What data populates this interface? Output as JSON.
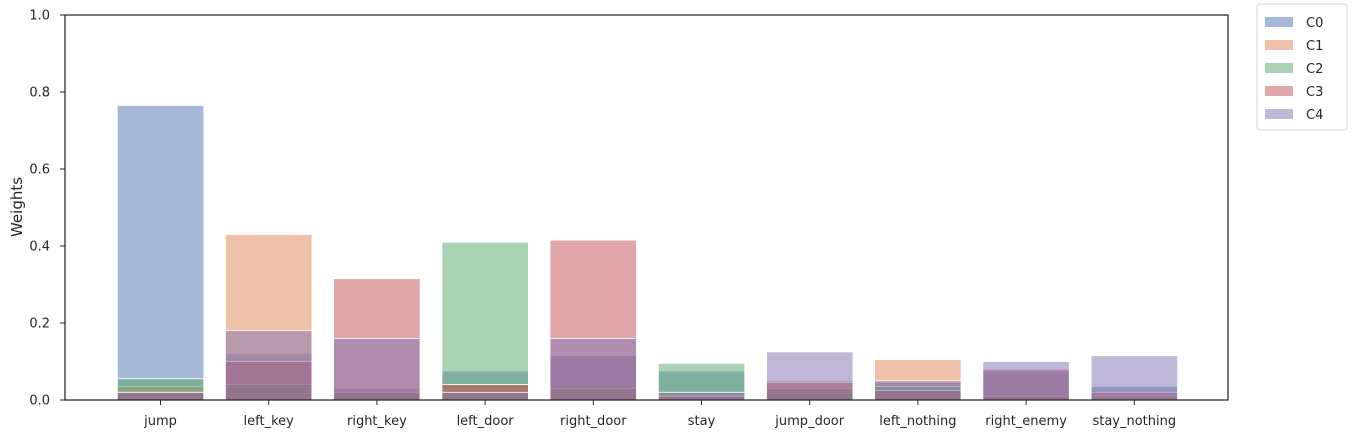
{
  "chart_data": {
    "type": "bar",
    "title": "",
    "xlabel": "",
    "ylabel": "Weights",
    "ylim": [
      0,
      1.0
    ],
    "yticks": [
      "0.0",
      "0.2",
      "0.4",
      "0.6",
      "0.8",
      "1.0"
    ],
    "grid": false,
    "legend_position": "outside top-right",
    "bar_opacity": 0.5,
    "categories": [
      "jump",
      "left_key",
      "right_key",
      "left_door",
      "right_door",
      "stay",
      "jump_door",
      "left_nothing",
      "right_enemy",
      "stay_nothing"
    ],
    "series": [
      {
        "name": "C0",
        "color": "#4c72b0",
        "values": [
          0.765,
          0.12,
          0.03,
          0.075,
          0.115,
          0.075,
          0.02,
          0.045,
          0.075,
          0.035
        ]
      },
      {
        "name": "C1",
        "color": "#dd8452",
        "values": [
          0.035,
          0.43,
          0.02,
          0.04,
          0.03,
          0.02,
          0.05,
          0.105,
          0.01,
          0.01
        ]
      },
      {
        "name": "C2",
        "color": "#55a868",
        "values": [
          0.055,
          0.04,
          0.02,
          0.41,
          0.03,
          0.095,
          0.03,
          0.035,
          0.01,
          0.01
        ]
      },
      {
        "name": "C3",
        "color": "#c44e52",
        "values": [
          0.02,
          0.1,
          0.315,
          0.04,
          0.415,
          0.01,
          0.045,
          0.025,
          0.08,
          0.02
        ]
      },
      {
        "name": "C4",
        "color": "#8172b3",
        "values": [
          0.02,
          0.18,
          0.16,
          0.02,
          0.16,
          0.02,
          0.125,
          0.05,
          0.1,
          0.115
        ]
      }
    ]
  }
}
